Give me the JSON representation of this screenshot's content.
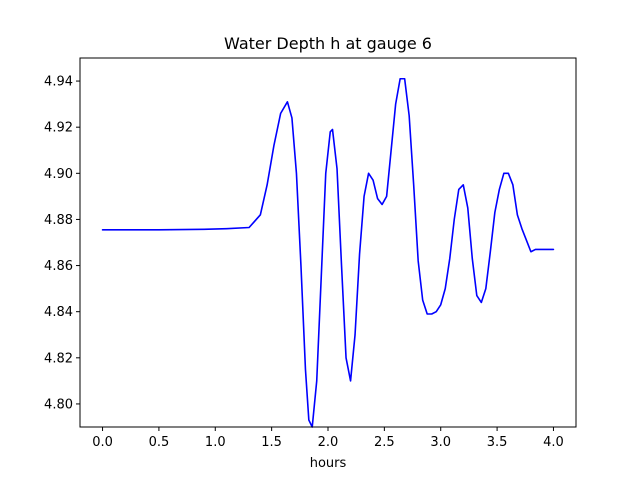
{
  "chart_data": {
    "type": "line",
    "title": "Water Depth h at gauge 6",
    "xlabel": "hours",
    "ylabel": "",
    "xlim": [
      -0.2,
      4.2
    ],
    "ylim": [
      4.79,
      4.95
    ],
    "grid": false,
    "x_ticks": [
      0.0,
      0.5,
      1.0,
      1.5,
      2.0,
      2.5,
      3.0,
      3.5,
      4.0
    ],
    "x_tick_labels": [
      "0.0",
      "0.5",
      "1.0",
      "1.5",
      "2.0",
      "2.5",
      "3.0",
      "3.5",
      "4.0"
    ],
    "y_ticks": [
      4.8,
      4.82,
      4.84,
      4.86,
      4.88,
      4.9,
      4.92,
      4.94
    ],
    "y_tick_labels": [
      "4.80",
      "4.82",
      "4.84",
      "4.86",
      "4.88",
      "4.90",
      "4.92",
      "4.94"
    ],
    "series": [
      {
        "color": "#0000ff",
        "x": [
          0.0,
          0.5,
          0.9,
          1.1,
          1.3,
          1.4,
          1.46,
          1.52,
          1.58,
          1.64,
          1.68,
          1.72,
          1.76,
          1.8,
          1.83,
          1.86,
          1.9,
          1.94,
          1.98,
          2.02,
          2.04,
          2.08,
          2.12,
          2.16,
          2.2,
          2.24,
          2.28,
          2.32,
          2.36,
          2.4,
          2.44,
          2.48,
          2.52,
          2.56,
          2.6,
          2.64,
          2.68,
          2.72,
          2.76,
          2.8,
          2.84,
          2.88,
          2.92,
          2.96,
          3.0,
          3.04,
          3.08,
          3.12,
          3.16,
          3.2,
          3.24,
          3.28,
          3.32,
          3.36,
          3.4,
          3.44,
          3.48,
          3.52,
          3.56,
          3.6,
          3.64,
          3.68,
          3.72,
          3.76,
          3.8,
          3.84,
          3.88,
          3.92,
          3.95,
          4.0
        ],
        "y": [
          4.8755,
          4.8755,
          4.8757,
          4.876,
          4.8765,
          4.882,
          4.895,
          4.912,
          4.926,
          4.931,
          4.924,
          4.9,
          4.86,
          4.815,
          4.793,
          4.79,
          4.81,
          4.855,
          4.9,
          4.918,
          4.919,
          4.902,
          4.86,
          4.82,
          4.81,
          4.83,
          4.865,
          4.89,
          4.9,
          4.897,
          4.889,
          4.8865,
          4.89,
          4.91,
          4.93,
          4.941,
          4.941,
          4.925,
          4.895,
          4.862,
          4.845,
          4.839,
          4.839,
          4.84,
          4.843,
          4.85,
          4.863,
          4.88,
          4.893,
          4.895,
          4.885,
          4.863,
          4.847,
          4.844,
          4.85,
          4.866,
          4.883,
          4.893,
          4.9,
          4.9,
          4.895,
          4.882,
          4.876,
          4.871,
          4.866,
          4.867,
          4.867,
          4.867,
          4.867,
          4.867
        ]
      }
    ]
  }
}
